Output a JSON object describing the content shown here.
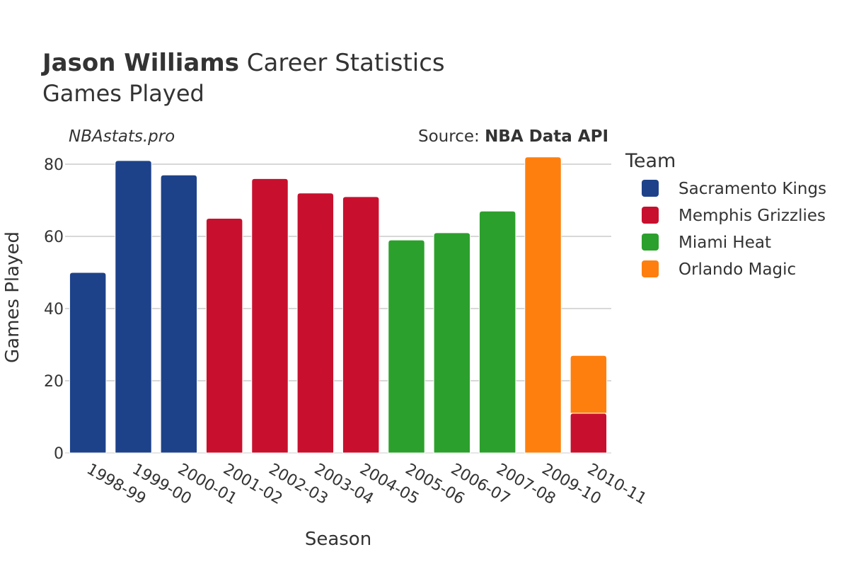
{
  "header": {
    "title_bold": "Jason Williams",
    "title_rest": "Career Statistics",
    "subtitle": "Games Played",
    "watermark": "NBAstats.pro",
    "source_prefix": "Source: ",
    "source_name": "NBA Data API"
  },
  "legend": {
    "title": "Team"
  },
  "colors": {
    "Sacramento Kings": "#1d428a",
    "Memphis Grizzlies": "#c8102e",
    "Miami Heat": "#2ca02c",
    "Orlando Magic": "#ff7f0e",
    "grid": "#b0b0b0",
    "text": "#333333"
  },
  "chart_data": {
    "type": "bar",
    "stacked": true,
    "title": "Jason Williams Career Statistics",
    "subtitle": "Games Played",
    "xlabel": "Season",
    "ylabel": "Games Played",
    "ylim": [
      0,
      85
    ],
    "yticks": [
      0,
      20,
      40,
      60,
      80
    ],
    "grid": true,
    "legend_position": "right",
    "categories": [
      "1998-99",
      "1999-00",
      "2000-01",
      "2001-02",
      "2002-03",
      "2003-04",
      "2004-05",
      "2005-06",
      "2006-07",
      "2007-08",
      "2009-10",
      "2010-11"
    ],
    "series": [
      {
        "name": "Sacramento Kings",
        "values": [
          50,
          81,
          77,
          0,
          0,
          0,
          0,
          0,
          0,
          0,
          0,
          0
        ]
      },
      {
        "name": "Memphis Grizzlies",
        "values": [
          0,
          0,
          0,
          65,
          76,
          72,
          71,
          0,
          0,
          0,
          0,
          11
        ]
      },
      {
        "name": "Miami Heat",
        "values": [
          0,
          0,
          0,
          0,
          0,
          0,
          0,
          59,
          61,
          67,
          0,
          0
        ]
      },
      {
        "name": "Orlando Magic",
        "values": [
          0,
          0,
          0,
          0,
          0,
          0,
          0,
          0,
          0,
          0,
          82,
          16
        ]
      }
    ]
  }
}
